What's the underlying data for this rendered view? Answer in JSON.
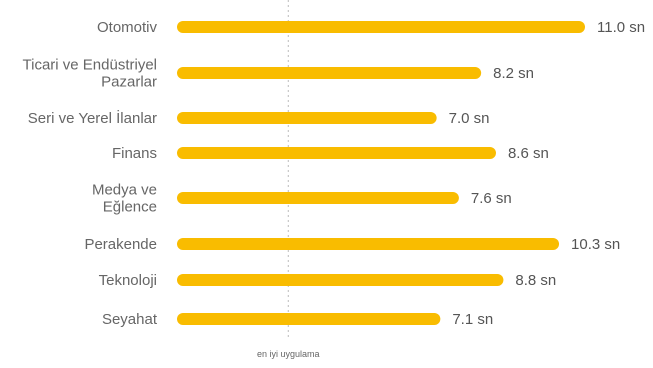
{
  "chart_data": {
    "type": "bar",
    "orientation": "horizontal",
    "categories": [
      [
        "Otomotiv"
      ],
      [
        "Ticari ve Endüstriyel",
        "Pazarlar"
      ],
      [
        "Seri ve Yerel İlanlar"
      ],
      [
        "Finans"
      ],
      [
        "Medya ve",
        "Eğlence"
      ],
      [
        "Perakende"
      ],
      [
        "Teknoloji"
      ],
      [
        "Seyahat"
      ]
    ],
    "values": [
      11.0,
      8.2,
      7.0,
      8.6,
      7.6,
      10.3,
      8.8,
      7.1
    ],
    "value_labels": [
      "11.0 sn",
      "8.2 sn",
      "7.0 sn",
      "8.6 sn",
      "7.6 sn",
      "10.3 sn",
      "8.8 sn",
      "7.1 sn"
    ],
    "reference_line": {
      "value": 3.0,
      "label": "en iyi uygulama",
      "style": "dotted"
    },
    "xlim": [
      0,
      11.0
    ],
    "grid": false,
    "bar_color": "#F9BC00",
    "title": "",
    "xlabel": "",
    "ylabel": ""
  }
}
